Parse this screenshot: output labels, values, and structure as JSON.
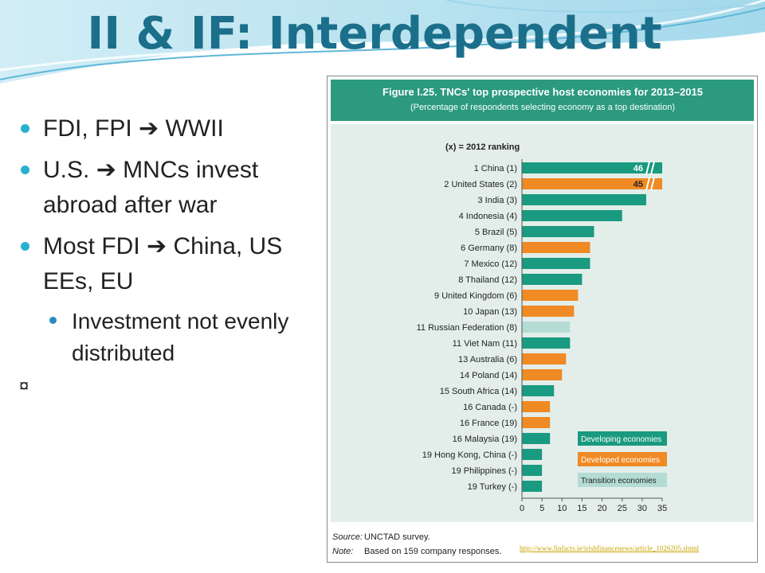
{
  "slide": {
    "title": "II & IF: Interdependent",
    "bullets": [
      {
        "pre": "FDI, FPI ",
        "arrow": "➔",
        "post": " WWII"
      },
      {
        "pre": "U.S. ",
        "arrow": "➔",
        "post": " MNCs invest abroad after war"
      },
      {
        "pre": "Most FDI ",
        "arrow": "➔",
        "post": " China, US EEs, EU"
      }
    ],
    "sub_bullets": [
      "Investment not evenly distributed"
    ],
    "stray_symbol": "¤",
    "link_text": "http://www.finfacts.ie/irishfinancenews/article_1026205.shtml"
  },
  "colors": {
    "title": "#1b6f8a",
    "header_band": "#2b9a7e",
    "chart_bg": "#e3eeea",
    "developing": "#1a9a80",
    "developed": "#f08a24",
    "transition": "#b4dcd4"
  },
  "chart_data": {
    "type": "bar",
    "orientation": "horizontal",
    "title": "Figure I.25. TNCs' top prospective host economies for 2013–2015",
    "subtitle": "(Percentage of respondents selecting economy as a top destination)",
    "ranking_note": "(x) = 2012 ranking",
    "categories": [
      "1 China (1)",
      "2 United States (2)",
      "3 India (3)",
      "4 Indonesia (4)",
      "5 Brazil (5)",
      "6 Germany (8)",
      "7 Mexico (12)",
      "8 Thailand (12)",
      "9 United Kingdom (6)",
      "10 Japan (13)",
      "11 Russian Federation (8)",
      "11 Viet Nam (11)",
      "13 Australia (6)",
      "14 Poland (14)",
      "15 South Africa (14)",
      "16 Canada (-)",
      "16 France (19)",
      "16 Malaysia (19)",
      "19 Hong Kong, China (-)",
      "19 Philippines (-)",
      "19 Turkey (-)"
    ],
    "values": [
      46,
      45,
      31,
      25,
      18,
      17,
      17,
      15,
      14,
      13,
      12,
      12,
      11,
      10,
      8,
      7,
      7,
      7,
      5,
      5,
      5
    ],
    "groups": [
      "developing",
      "developed",
      "developing",
      "developing",
      "developing",
      "developed",
      "developing",
      "developing",
      "developed",
      "developed",
      "transition",
      "developing",
      "developed",
      "developed",
      "developing",
      "developed",
      "developed",
      "developing",
      "developing",
      "developing",
      "developing"
    ],
    "value_labels": [
      "46",
      "45",
      "",
      "",
      "",
      "",
      "",
      "",
      "",
      "",
      "",
      "",
      "",
      "",
      "",
      "",
      "",
      "",
      "",
      "",
      ""
    ],
    "axis_break_after": 35,
    "xlim": [
      0,
      35
    ],
    "xticks": [
      0,
      5,
      10,
      15,
      20,
      25,
      30,
      35
    ],
    "legend": [
      {
        "key": "developing",
        "label": "Developing economies"
      },
      {
        "key": "developed",
        "label": "Developed economies"
      },
      {
        "key": "transition",
        "label": "Transition economies"
      }
    ],
    "legend_position": "bottom-right",
    "grid": false,
    "source_label": "Source:",
    "source_text": "UNCTAD survey.",
    "note_label": "Note:",
    "note_text": "Based on 159 company responses."
  }
}
